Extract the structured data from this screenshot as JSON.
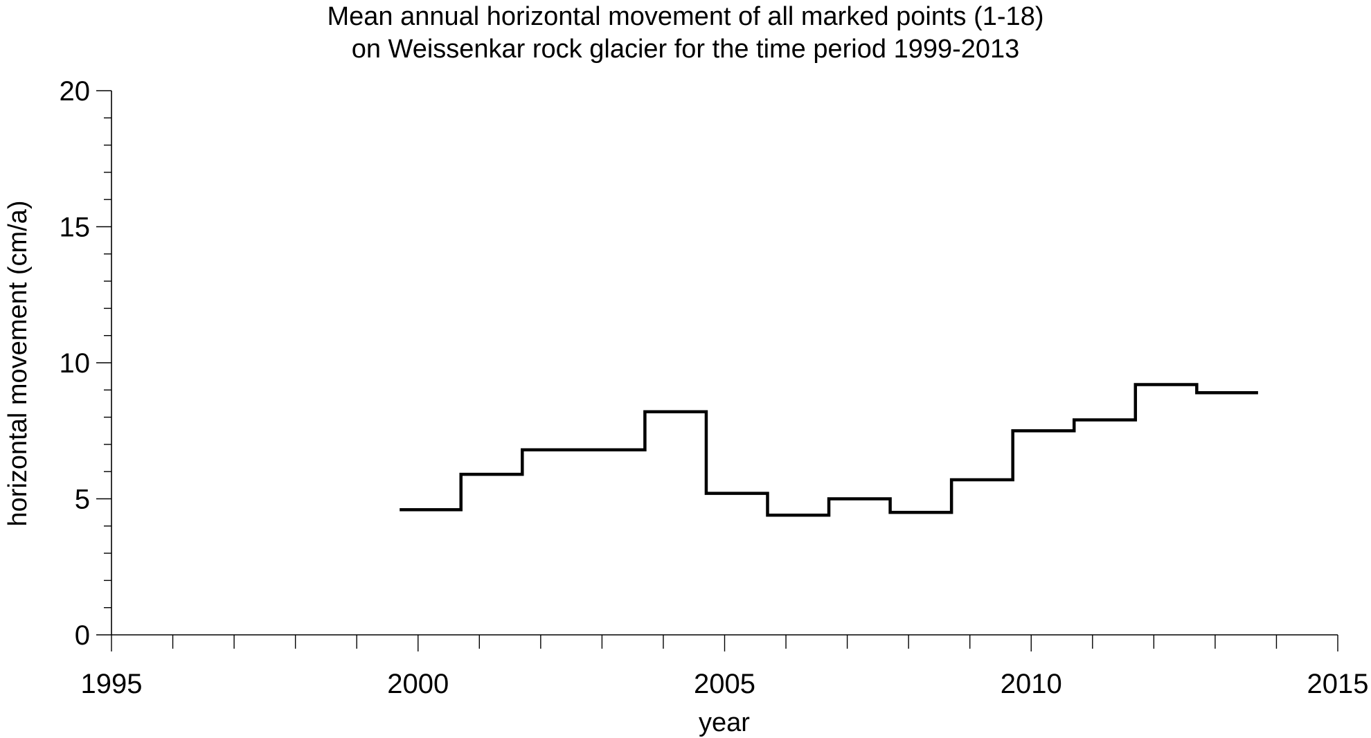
{
  "chart_data": {
    "type": "line",
    "style": "step",
    "title_lines": [
      "Mean annual horizontal movement of all marked points (1-18)",
      "on Weissenkar rock glacier for the time period 1999-2013"
    ],
    "xlabel": "year",
    "ylabel": "horizontal movement (cm/a)",
    "xlim": [
      1995,
      2015
    ],
    "ylim": [
      0,
      20
    ],
    "x_ticks": [
      "1995",
      "2000",
      "2005",
      "2010",
      "2015"
    ],
    "y_ticks": [
      "0",
      "5",
      "10",
      "15",
      "20"
    ],
    "x_minor_step": 1,
    "y_minor_step": 1,
    "grid": false,
    "line_color": "#000000",
    "series": [
      {
        "periods": [
          {
            "x_start": 1999.7,
            "x_end": 2000.7,
            "value": 4.6
          },
          {
            "x_start": 2000.7,
            "x_end": 2001.7,
            "value": 5.9
          },
          {
            "x_start": 2001.7,
            "x_end": 2003.7,
            "value": 6.8
          },
          {
            "x_start": 2003.7,
            "x_end": 2004.7,
            "value": 8.2
          },
          {
            "x_start": 2004.7,
            "x_end": 2005.7,
            "value": 5.2
          },
          {
            "x_start": 2005.7,
            "x_end": 2006.7,
            "value": 4.4
          },
          {
            "x_start": 2006.7,
            "x_end": 2007.7,
            "value": 5.0
          },
          {
            "x_start": 2007.7,
            "x_end": 2008.7,
            "value": 4.5
          },
          {
            "x_start": 2008.7,
            "x_end": 2009.7,
            "value": 5.7
          },
          {
            "x_start": 2009.7,
            "x_end": 2010.7,
            "value": 7.5
          },
          {
            "x_start": 2010.7,
            "x_end": 2011.7,
            "value": 7.9
          },
          {
            "x_start": 2011.7,
            "x_end": 2012.7,
            "value": 9.2
          },
          {
            "x_start": 2012.7,
            "x_end": 2013.7,
            "value": 8.9
          }
        ]
      }
    ]
  }
}
